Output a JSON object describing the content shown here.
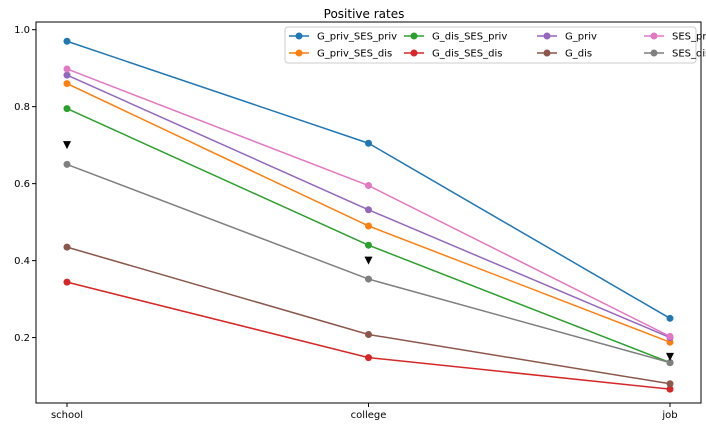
{
  "chart_data": {
    "type": "line",
    "title": "Positive rates",
    "xlabel": "",
    "ylabel": "",
    "categories": [
      "school",
      "college",
      "job"
    ],
    "ylim": [
      0.03,
      1.02
    ],
    "yticks": [
      0.2,
      0.4,
      0.6,
      0.8,
      1.0
    ],
    "ytick_labels": [
      "0.2",
      "0.4",
      "0.6",
      "0.8",
      "1.0"
    ],
    "grid": false,
    "legend_position": "top-right",
    "series": [
      {
        "name": "G_priv_SES_priv",
        "color": "#1f77b4",
        "values": [
          0.97,
          0.705,
          0.25
        ]
      },
      {
        "name": "G_priv_SES_dis",
        "color": "#ff7f0e",
        "values": [
          0.86,
          0.49,
          0.188
        ]
      },
      {
        "name": "G_dis_SES_priv",
        "color": "#2ca02c",
        "values": [
          0.795,
          0.44,
          0.135
        ]
      },
      {
        "name": "G_dis_SES_dis",
        "color": "#d62728",
        "values": [
          0.344,
          0.148,
          0.066
        ]
      },
      {
        "name": "G_priv",
        "color": "#9467bd",
        "values": [
          0.882,
          0.532,
          0.2
        ]
      },
      {
        "name": "G_dis",
        "color": "#8c564b",
        "values": [
          0.435,
          0.208,
          0.08
        ]
      },
      {
        "name": "SES_priv",
        "color": "#e377c2",
        "values": [
          0.898,
          0.595,
          0.203
        ]
      },
      {
        "name": "SES_dis",
        "color": "#7f7f7f",
        "values": [
          0.65,
          0.352,
          0.135
        ]
      }
    ],
    "markers": {
      "shape": "triangle-down",
      "color": "#000000",
      "values": [
        0.7,
        0.4,
        0.15
      ]
    }
  }
}
